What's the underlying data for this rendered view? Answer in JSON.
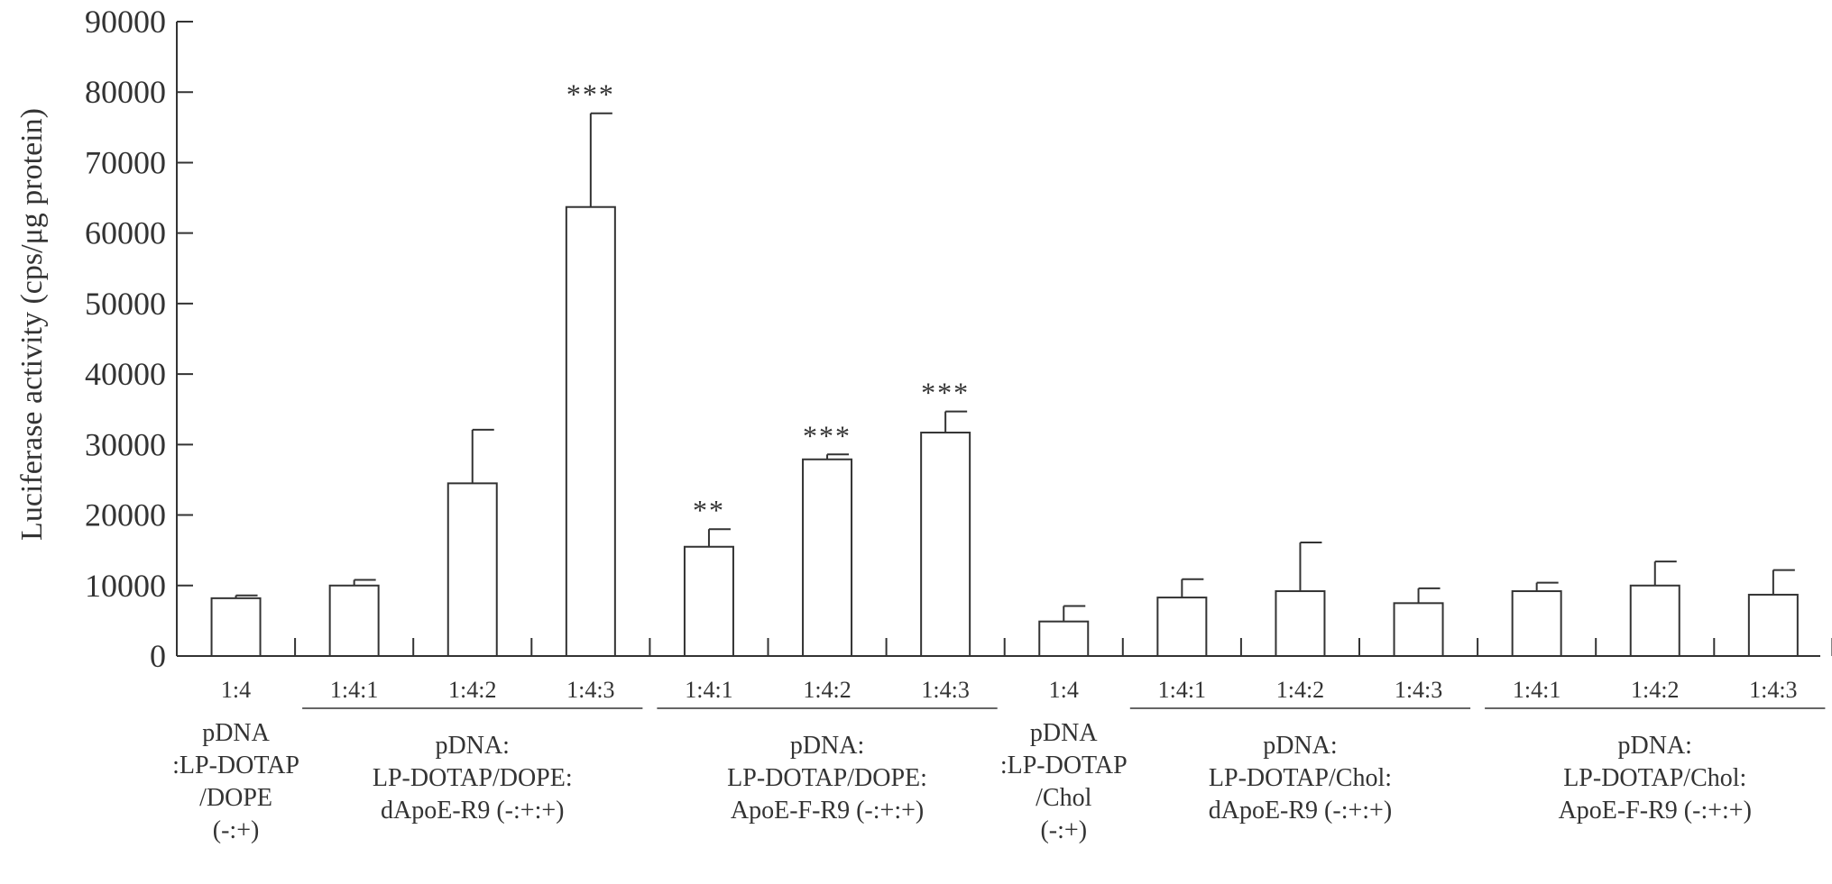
{
  "chart_data": {
    "type": "bar",
    "ylabel": "Luciferase activity (cps/μg protein)",
    "ylim": [
      0,
      90000
    ],
    "yticks": [
      0,
      10000,
      20000,
      30000,
      40000,
      50000,
      60000,
      70000,
      80000,
      90000
    ],
    "grid": false,
    "bar_fill": "#ffffff",
    "bar_stroke": "#333333",
    "bars": [
      {
        "group": 0,
        "label": "1:4",
        "value": 8200,
        "error": 400,
        "sig": ""
      },
      {
        "group": 1,
        "label": "1:4:1",
        "value": 10000,
        "error": 800,
        "sig": ""
      },
      {
        "group": 1,
        "label": "1:4:2",
        "value": 24500,
        "error": 7600,
        "sig": ""
      },
      {
        "group": 1,
        "label": "1:4:3",
        "value": 63700,
        "error": 13300,
        "sig": "***"
      },
      {
        "group": 2,
        "label": "1:4:1",
        "value": 15500,
        "error": 2500,
        "sig": "**"
      },
      {
        "group": 2,
        "label": "1:4:2",
        "value": 27900,
        "error": 700,
        "sig": "***"
      },
      {
        "group": 2,
        "label": "1:4:3",
        "value": 31700,
        "error": 3000,
        "sig": "***"
      },
      {
        "group": 3,
        "label": "1:4",
        "value": 4900,
        "error": 2200,
        "sig": ""
      },
      {
        "group": 4,
        "label": "1:4:1",
        "value": 8300,
        "error": 2600,
        "sig": ""
      },
      {
        "group": 4,
        "label": "1:4:2",
        "value": 9200,
        "error": 6900,
        "sig": ""
      },
      {
        "group": 4,
        "label": "1:4:3",
        "value": 7500,
        "error": 2100,
        "sig": ""
      },
      {
        "group": 5,
        "label": "1:4:1",
        "value": 9200,
        "error": 1200,
        "sig": ""
      },
      {
        "group": 5,
        "label": "1:4:2",
        "value": 10000,
        "error": 3400,
        "sig": ""
      },
      {
        "group": 5,
        "label": "1:4:3",
        "value": 8700,
        "error": 3500,
        "sig": ""
      }
    ],
    "groups": [
      {
        "lines": [
          "pDNA",
          ":LP-DOTAP",
          "/DOPE",
          "(-:+)"
        ],
        "underline": false
      },
      {
        "lines": [
          "pDNA:",
          "LP-DOTAP/DOPE:",
          "dApoE-R9 (-:+:+)"
        ],
        "underline": true
      },
      {
        "lines": [
          "pDNA:",
          "LP-DOTAP/DOPE:",
          "ApoE-F-R9 (-:+:+)"
        ],
        "underline": true
      },
      {
        "lines": [
          "pDNA",
          ":LP-DOTAP",
          "/Chol",
          "(-:+)"
        ],
        "underline": false
      },
      {
        "lines": [
          "pDNA:",
          "LP-DOTAP/Chol:",
          "dApoE-R9 (-:+:+)"
        ],
        "underline": true
      },
      {
        "lines": [
          "pDNA:",
          "LP-DOTAP/Chol:",
          "ApoE-F-R9 (-:+:+)"
        ],
        "underline": true
      }
    ]
  }
}
